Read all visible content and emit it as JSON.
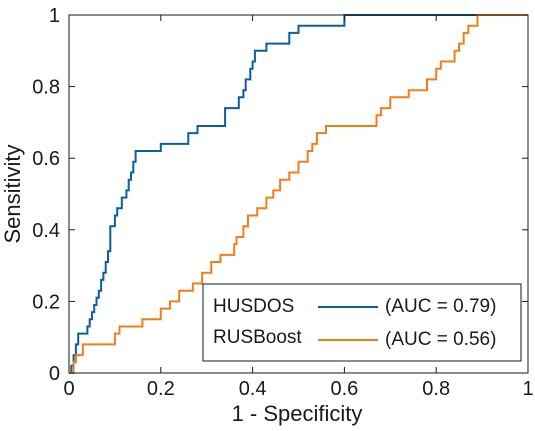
{
  "chart_data": {
    "type": "line",
    "title": "",
    "xlabel": "1 - Specificity",
    "ylabel": "Sensitivity",
    "xlim": [
      0,
      1
    ],
    "ylim": [
      0,
      1
    ],
    "x_ticks": [
      0,
      0.2,
      0.4,
      0.6,
      0.8,
      1
    ],
    "x_tick_labels": [
      "0",
      "0.2",
      "0.4",
      "0.6",
      "0.8",
      "1"
    ],
    "y_ticks": [
      0,
      0.2,
      0.4,
      0.6,
      0.8,
      1
    ],
    "y_tick_labels": [
      "0",
      "0.2",
      "0.4",
      "0.6",
      "0.8",
      "1"
    ],
    "grid": false,
    "legend_position": "bottom-right",
    "series": [
      {
        "name": "HUSDOS",
        "label": "(AUC = 0.79)",
        "color": "#0a5f9e",
        "points": [
          [
            0,
            0
          ],
          [
            0.005,
            0
          ],
          [
            0.005,
            0.02
          ],
          [
            0.01,
            0.02
          ],
          [
            0.01,
            0.05
          ],
          [
            0.015,
            0.05
          ],
          [
            0.015,
            0.08
          ],
          [
            0.02,
            0.08
          ],
          [
            0.02,
            0.11
          ],
          [
            0.04,
            0.11
          ],
          [
            0.04,
            0.13
          ],
          [
            0.045,
            0.13
          ],
          [
            0.045,
            0.15
          ],
          [
            0.05,
            0.15
          ],
          [
            0.05,
            0.17
          ],
          [
            0.055,
            0.17
          ],
          [
            0.055,
            0.19
          ],
          [
            0.06,
            0.19
          ],
          [
            0.06,
            0.21
          ],
          [
            0.065,
            0.21
          ],
          [
            0.065,
            0.23
          ],
          [
            0.07,
            0.23
          ],
          [
            0.07,
            0.26
          ],
          [
            0.075,
            0.26
          ],
          [
            0.075,
            0.28
          ],
          [
            0.08,
            0.28
          ],
          [
            0.08,
            0.31
          ],
          [
            0.085,
            0.31
          ],
          [
            0.085,
            0.34
          ],
          [
            0.09,
            0.34
          ],
          [
            0.09,
            0.41
          ],
          [
            0.1,
            0.41
          ],
          [
            0.1,
            0.44
          ],
          [
            0.105,
            0.44
          ],
          [
            0.105,
            0.46
          ],
          [
            0.115,
            0.46
          ],
          [
            0.115,
            0.49
          ],
          [
            0.125,
            0.49
          ],
          [
            0.125,
            0.51
          ],
          [
            0.13,
            0.51
          ],
          [
            0.13,
            0.54
          ],
          [
            0.135,
            0.54
          ],
          [
            0.135,
            0.56
          ],
          [
            0.14,
            0.56
          ],
          [
            0.14,
            0.59
          ],
          [
            0.145,
            0.59
          ],
          [
            0.145,
            0.62
          ],
          [
            0.2,
            0.62
          ],
          [
            0.2,
            0.64
          ],
          [
            0.26,
            0.64
          ],
          [
            0.26,
            0.67
          ],
          [
            0.28,
            0.67
          ],
          [
            0.28,
            0.69
          ],
          [
            0.34,
            0.69
          ],
          [
            0.34,
            0.74
          ],
          [
            0.37,
            0.74
          ],
          [
            0.37,
            0.77
          ],
          [
            0.38,
            0.77
          ],
          [
            0.38,
            0.79
          ],
          [
            0.385,
            0.79
          ],
          [
            0.385,
            0.82
          ],
          [
            0.395,
            0.82
          ],
          [
            0.395,
            0.85
          ],
          [
            0.4,
            0.85
          ],
          [
            0.4,
            0.87
          ],
          [
            0.405,
            0.87
          ],
          [
            0.405,
            0.9
          ],
          [
            0.43,
            0.9
          ],
          [
            0.43,
            0.92
          ],
          [
            0.48,
            0.92
          ],
          [
            0.48,
            0.95
          ],
          [
            0.5,
            0.95
          ],
          [
            0.5,
            0.97
          ],
          [
            0.6,
            0.97
          ],
          [
            0.6,
            1.0
          ],
          [
            1,
            1.0
          ]
        ]
      },
      {
        "name": "RUSBoost",
        "label": "(AUC = 0.56)",
        "color": "#f07f1a",
        "points": [
          [
            0,
            0
          ],
          [
            0.01,
            0
          ],
          [
            0.01,
            0.03
          ],
          [
            0.015,
            0.03
          ],
          [
            0.015,
            0.05
          ],
          [
            0.03,
            0.05
          ],
          [
            0.03,
            0.08
          ],
          [
            0.1,
            0.08
          ],
          [
            0.1,
            0.11
          ],
          [
            0.11,
            0.11
          ],
          [
            0.11,
            0.13
          ],
          [
            0.16,
            0.13
          ],
          [
            0.16,
            0.15
          ],
          [
            0.2,
            0.15
          ],
          [
            0.2,
            0.18
          ],
          [
            0.22,
            0.18
          ],
          [
            0.22,
            0.2
          ],
          [
            0.24,
            0.2
          ],
          [
            0.24,
            0.23
          ],
          [
            0.27,
            0.23
          ],
          [
            0.27,
            0.25
          ],
          [
            0.29,
            0.25
          ],
          [
            0.29,
            0.28
          ],
          [
            0.31,
            0.28
          ],
          [
            0.31,
            0.31
          ],
          [
            0.33,
            0.31
          ],
          [
            0.33,
            0.33
          ],
          [
            0.36,
            0.33
          ],
          [
            0.36,
            0.36
          ],
          [
            0.365,
            0.36
          ],
          [
            0.365,
            0.38
          ],
          [
            0.38,
            0.38
          ],
          [
            0.38,
            0.41
          ],
          [
            0.39,
            0.41
          ],
          [
            0.39,
            0.44
          ],
          [
            0.41,
            0.44
          ],
          [
            0.41,
            0.46
          ],
          [
            0.43,
            0.46
          ],
          [
            0.43,
            0.49
          ],
          [
            0.445,
            0.49
          ],
          [
            0.445,
            0.51
          ],
          [
            0.46,
            0.51
          ],
          [
            0.46,
            0.54
          ],
          [
            0.48,
            0.54
          ],
          [
            0.48,
            0.56
          ],
          [
            0.5,
            0.56
          ],
          [
            0.5,
            0.59
          ],
          [
            0.52,
            0.59
          ],
          [
            0.52,
            0.62
          ],
          [
            0.53,
            0.62
          ],
          [
            0.53,
            0.64
          ],
          [
            0.54,
            0.64
          ],
          [
            0.54,
            0.67
          ],
          [
            0.56,
            0.67
          ],
          [
            0.56,
            0.69
          ],
          [
            0.67,
            0.69
          ],
          [
            0.67,
            0.72
          ],
          [
            0.68,
            0.72
          ],
          [
            0.68,
            0.74
          ],
          [
            0.7,
            0.74
          ],
          [
            0.7,
            0.77
          ],
          [
            0.74,
            0.77
          ],
          [
            0.74,
            0.79
          ],
          [
            0.78,
            0.79
          ],
          [
            0.78,
            0.82
          ],
          [
            0.8,
            0.82
          ],
          [
            0.8,
            0.85
          ],
          [
            0.81,
            0.85
          ],
          [
            0.81,
            0.87
          ],
          [
            0.84,
            0.87
          ],
          [
            0.84,
            0.9
          ],
          [
            0.85,
            0.9
          ],
          [
            0.85,
            0.92
          ],
          [
            0.86,
            0.92
          ],
          [
            0.86,
            0.95
          ],
          [
            0.87,
            0.95
          ],
          [
            0.87,
            0.97
          ],
          [
            0.89,
            0.97
          ],
          [
            0.89,
            1.0
          ],
          [
            1,
            1.0
          ]
        ]
      }
    ]
  }
}
